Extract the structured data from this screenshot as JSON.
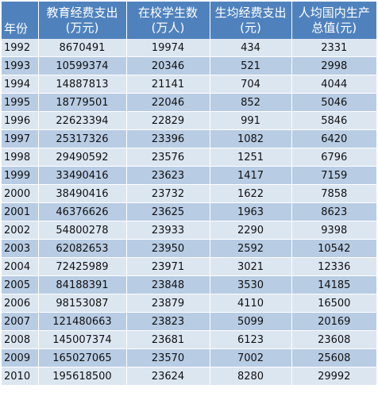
{
  "table": {
    "headers": [
      "年份",
      "教育经费支出\n(万元)",
      "在校学生数\n(万人)",
      "生均经费支出\n(元)",
      "人均国内生产\n总值(元)"
    ],
    "rows": [
      [
        "1992",
        "8670491",
        "19974",
        "434",
        "2331"
      ],
      [
        "1993",
        "10599374",
        "20346",
        "521",
        "2998"
      ],
      [
        "1994",
        "14887813",
        "21141",
        "704",
        "4044"
      ],
      [
        "1995",
        "18779501",
        "22046",
        "852",
        "5046"
      ],
      [
        "1996",
        "22623394",
        "22829",
        "991",
        "5846"
      ],
      [
        "1997",
        "25317326",
        "23396",
        "1082",
        "6420"
      ],
      [
        "1998",
        "29490592",
        "23576",
        "1251",
        "6796"
      ],
      [
        "1999",
        "33490416",
        "23623",
        "1417",
        "7159"
      ],
      [
        "2000",
        "38490416",
        "23732",
        "1622",
        "7858"
      ],
      [
        "2001",
        "46376626",
        "23625",
        "1963",
        "8623"
      ],
      [
        "2002",
        "54800278",
        "23933",
        "2290",
        "9398"
      ],
      [
        "2003",
        "62082653",
        "23950",
        "2592",
        "10542"
      ],
      [
        "2004",
        "72425989",
        "23971",
        "3021",
        "12336"
      ],
      [
        "2005",
        "84188391",
        "23848",
        "3530",
        "14185"
      ],
      [
        "2006",
        "98153087",
        "23879",
        "4110",
        "16500"
      ],
      [
        "2007",
        "121480663",
        "23823",
        "5099",
        "20169"
      ],
      [
        "2008",
        "145007374",
        "23681",
        "6123",
        "23608"
      ],
      [
        "2009",
        "165027065",
        "23570",
        "7002",
        "25608"
      ],
      [
        "2010",
        "195618500",
        "23624",
        "8280",
        "29992"
      ]
    ]
  },
  "colors": {
    "header_bg": "#4f82bd",
    "row_light": "#dce6f1",
    "row_dark": "#b8cce4"
  }
}
